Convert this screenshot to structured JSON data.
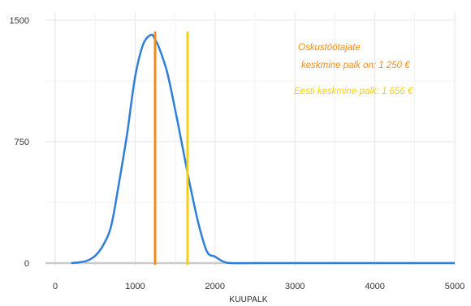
{
  "chart_data": {
    "type": "line",
    "title": "",
    "xlabel": "KUUPALK",
    "ylabel": "",
    "xlim": [
      0,
      5000
    ],
    "ylim": [
      0,
      1500
    ],
    "x_ticks": [
      "0",
      "1000",
      "2000",
      "3000",
      "4000",
      "5000"
    ],
    "y_ticks": [
      "0",
      "750",
      "1500"
    ],
    "grid": true,
    "series": [
      {
        "color": "#2f7ed8",
        "x": [
          200,
          300,
          400,
          500,
          600,
          700,
          800,
          900,
          1000,
          1100,
          1200,
          1250,
          1300,
          1400,
          1500,
          1600,
          1700,
          1800,
          1900,
          2000,
          2100,
          2200,
          2500,
          3000,
          3500,
          4000,
          4500,
          5000
        ],
        "y": [
          0,
          5,
          15,
          45,
          110,
          230,
          500,
          800,
          1150,
          1350,
          1410,
          1380,
          1330,
          1180,
          950,
          700,
          450,
          230,
          70,
          40,
          10,
          0,
          0,
          0,
          0,
          0,
          0,
          0
        ]
      }
    ],
    "vlines": [
      {
        "x": 1250,
        "color": "#f28c1b"
      },
      {
        "x": 1656,
        "color": "#f7cf10"
      }
    ],
    "annotations": [
      {
        "lines": [
          "Oskustöötajate",
          "keskmine palk on: 1 250 €"
        ],
        "color": "#f28c1b"
      },
      {
        "lines": [
          "Eesti keskmine palk: 1 656 €"
        ],
        "color": "#f7cf10"
      }
    ]
  }
}
